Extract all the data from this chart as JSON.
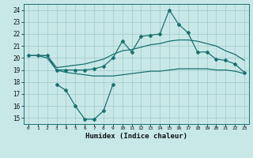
{
  "background_color": "#c8e8e8",
  "grid_color": "#a0c8c8",
  "line_color": "#1a7070",
  "xlabel": "Humidex (Indice chaleur)",
  "xlim": [
    -0.5,
    23.5
  ],
  "ylim": [
    14.5,
    24.5
  ],
  "yticks": [
    15,
    16,
    17,
    18,
    19,
    20,
    21,
    22,
    23,
    24
  ],
  "xticks": [
    0,
    1,
    2,
    3,
    4,
    5,
    6,
    7,
    8,
    9,
    10,
    11,
    12,
    13,
    14,
    15,
    16,
    17,
    18,
    19,
    20,
    21,
    22,
    23
  ],
  "series": {
    "main": [
      20.2,
      20.2,
      20.2,
      19.0,
      19.0,
      19.0,
      19.0,
      19.1,
      19.3,
      20.0,
      21.4,
      20.5,
      21.8,
      21.9,
      22.0,
      24.0,
      22.8,
      22.1,
      20.5,
      20.5,
      19.9,
      19.8,
      19.5,
      18.8
    ],
    "upper": [
      20.2,
      20.2,
      20.2,
      19.2,
      19.3,
      19.4,
      19.5,
      19.7,
      19.9,
      20.3,
      20.6,
      20.7,
      20.9,
      21.1,
      21.2,
      21.4,
      21.5,
      21.5,
      21.4,
      21.2,
      21.0,
      20.6,
      20.3,
      19.8
    ],
    "lower": [
      20.2,
      20.2,
      20.0,
      19.0,
      18.8,
      18.7,
      18.6,
      18.5,
      18.5,
      18.5,
      18.6,
      18.7,
      18.8,
      18.9,
      18.9,
      19.0,
      19.1,
      19.1,
      19.1,
      19.1,
      19.0,
      19.0,
      18.9,
      18.7
    ],
    "zigzag": [
      null,
      null,
      null,
      17.8,
      17.3,
      16.0,
      14.9,
      14.9,
      15.6,
      17.8,
      null,
      null,
      null,
      null,
      null,
      null,
      null,
      null,
      null,
      null,
      null,
      null,
      null,
      null
    ]
  }
}
